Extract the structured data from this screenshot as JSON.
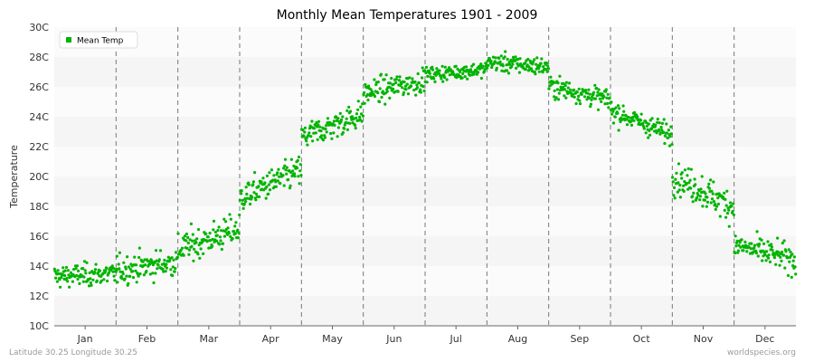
{
  "chart_data": {
    "type": "scatter",
    "title": "Monthly Mean Temperatures 1901 - 2009",
    "ylabel": "Temperature",
    "xlabel": "",
    "ylim": [
      10,
      30
    ],
    "y_ticks": [
      "10C",
      "12C",
      "14C",
      "16C",
      "18C",
      "20C",
      "22C",
      "24C",
      "26C",
      "28C",
      "30C"
    ],
    "categories": [
      "Jan",
      "Feb",
      "Mar",
      "Apr",
      "May",
      "Jun",
      "Jul",
      "Aug",
      "Sep",
      "Oct",
      "Nov",
      "Dec"
    ],
    "years": [
      1901,
      2009
    ],
    "series": [
      {
        "name": "Mean Temp",
        "color": "#00b400",
        "monthly_mean": [
          13.4,
          14.0,
          15.8,
          19.5,
          23.4,
          26.0,
          27.0,
          27.5,
          25.6,
          23.6,
          19.0,
          14.9
        ],
        "monthly_min": [
          11.1,
          11.2,
          12.6,
          16.4,
          21.1,
          24.1,
          25.6,
          25.8,
          23.8,
          21.5,
          15.9,
          12.4
        ],
        "monthly_max": [
          15.5,
          16.6,
          18.6,
          22.1,
          26.4,
          28.8,
          28.5,
          29.4,
          27.8,
          25.6,
          22.1,
          17.6
        ]
      }
    ],
    "grid": true,
    "legend_position": "top-left"
  },
  "footer": {
    "left": "Latitude 30.25 Longitude 30.25",
    "right": "worldspecies.org"
  }
}
